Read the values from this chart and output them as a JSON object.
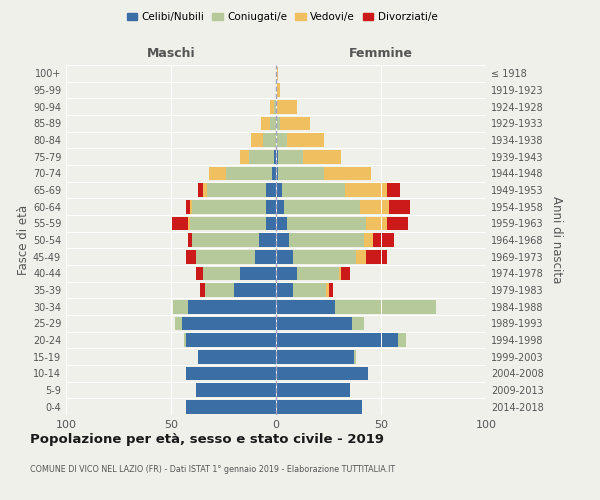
{
  "age_groups": [
    "0-4",
    "5-9",
    "10-14",
    "15-19",
    "20-24",
    "25-29",
    "30-34",
    "35-39",
    "40-44",
    "45-49",
    "50-54",
    "55-59",
    "60-64",
    "65-69",
    "70-74",
    "75-79",
    "80-84",
    "85-89",
    "90-94",
    "95-99",
    "100+"
  ],
  "birth_years": [
    "2014-2018",
    "2009-2013",
    "2004-2008",
    "1999-2003",
    "1994-1998",
    "1989-1993",
    "1984-1988",
    "1979-1983",
    "1974-1978",
    "1969-1973",
    "1964-1968",
    "1959-1963",
    "1954-1958",
    "1949-1953",
    "1944-1948",
    "1939-1943",
    "1934-1938",
    "1929-1933",
    "1924-1928",
    "1919-1923",
    "≤ 1918"
  ],
  "maschi": {
    "celibi": [
      43,
      38,
      43,
      37,
      43,
      45,
      42,
      20,
      17,
      10,
      8,
      5,
      5,
      5,
      2,
      1,
      0,
      0,
      0,
      0,
      0
    ],
    "coniugati": [
      0,
      0,
      0,
      0,
      1,
      3,
      7,
      14,
      18,
      28,
      32,
      36,
      35,
      28,
      22,
      12,
      6,
      3,
      1,
      0,
      0
    ],
    "vedovi": [
      0,
      0,
      0,
      0,
      0,
      0,
      0,
      0,
      0,
      0,
      0,
      1,
      1,
      2,
      8,
      4,
      6,
      4,
      2,
      0,
      0
    ],
    "divorziati": [
      0,
      0,
      0,
      0,
      0,
      0,
      0,
      2,
      3,
      5,
      2,
      8,
      2,
      2,
      0,
      0,
      0,
      0,
      0,
      0,
      0
    ]
  },
  "femmine": {
    "nubili": [
      41,
      35,
      44,
      37,
      58,
      36,
      28,
      8,
      10,
      8,
      6,
      5,
      4,
      3,
      1,
      1,
      0,
      0,
      0,
      0,
      0
    ],
    "coniugate": [
      0,
      0,
      0,
      1,
      4,
      6,
      48,
      16,
      20,
      30,
      36,
      38,
      36,
      30,
      22,
      12,
      5,
      2,
      0,
      0,
      0
    ],
    "vedove": [
      0,
      0,
      0,
      0,
      0,
      0,
      0,
      1,
      1,
      5,
      4,
      10,
      14,
      20,
      22,
      18,
      18,
      14,
      10,
      2,
      1
    ],
    "divorziate": [
      0,
      0,
      0,
      0,
      0,
      0,
      0,
      2,
      4,
      10,
      10,
      10,
      10,
      6,
      0,
      0,
      0,
      0,
      0,
      0,
      0
    ]
  },
  "colors": {
    "celibi": "#3a6ea5",
    "coniugati": "#b5c99a",
    "vedovi": "#f0c060",
    "divorziati": "#cc1a1a"
  },
  "xlim": 100,
  "title": "Popolazione per età, sesso e stato civile - 2019",
  "subtitle": "COMUNE DI VICO NEL LAZIO (FR) - Dati ISTAT 1° gennaio 2019 - Elaborazione TUTTITALIA.IT",
  "ylabel": "Fasce di età",
  "ylabel_right": "Anni di nascita",
  "background_color": "#f0f0eb"
}
